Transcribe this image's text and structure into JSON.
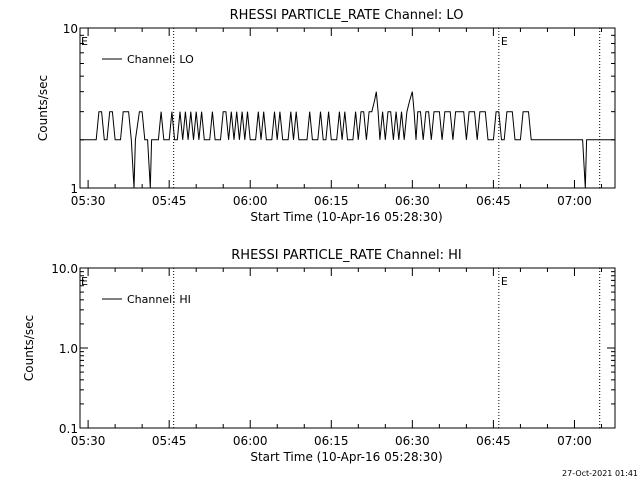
{
  "footer": {
    "timestamp": "27-Oct-2021 01:41"
  },
  "chart_data": [
    {
      "type": "line",
      "title": "RHESSI PARTICLE_RATE Channel: LO",
      "xlabel": "Start Time (10-Apr-16 05:28:30)",
      "ylabel": "Counts/sec",
      "yscale": "log",
      "ylim": [
        1,
        10
      ],
      "xlim": [
        "05:28:30",
        "07:07:30"
      ],
      "yticks": [
        {
          "v": 1,
          "label": "1"
        },
        {
          "v": 10,
          "label": "10"
        }
      ],
      "xticks": [
        "05:30",
        "05:45",
        "06:00",
        "06:15",
        "06:30",
        "06:45",
        "07:00"
      ],
      "legend": {
        "position": "top-left",
        "entries": [
          "Channel: LO"
        ]
      },
      "markers": [
        {
          "t": "05:45:50",
          "label": ""
        },
        {
          "t": "06:46:00",
          "label": "E"
        },
        {
          "t": "07:04:40",
          "label": ""
        }
      ],
      "edge_label": "E",
      "series": [
        {
          "name": "Channel: LO",
          "points": [
            [
              "05:28:30",
              1
            ],
            [
              "05:28:30",
              2
            ],
            [
              "05:31:30",
              2
            ],
            [
              "05:32:00",
              3
            ],
            [
              "05:32:30",
              3
            ],
            [
              "05:33:00",
              2
            ],
            [
              "05:33:30",
              2
            ],
            [
              "05:34:00",
              3
            ],
            [
              "05:34:30",
              3
            ],
            [
              "05:35:00",
              2
            ],
            [
              "05:36:00",
              2
            ],
            [
              "05:36:30",
              3
            ],
            [
              "05:37:30",
              3
            ],
            [
              "05:38:00",
              2
            ],
            [
              "05:38:30",
              1
            ],
            [
              "05:38:45",
              2
            ],
            [
              "05:39:30",
              3
            ],
            [
              "05:40:00",
              3
            ],
            [
              "05:40:30",
              2
            ],
            [
              "05:41:00",
              2
            ],
            [
              "05:41:30",
              1
            ],
            [
              "05:41:45",
              2
            ],
            [
              "05:43:00",
              2
            ],
            [
              "05:43:30",
              3
            ],
            [
              "05:44:00",
              2
            ],
            [
              "05:45:00",
              2
            ],
            [
              "05:45:30",
              3
            ],
            [
              "05:46:00",
              2
            ],
            [
              "05:46:30",
              2
            ],
            [
              "05:47:00",
              3
            ],
            [
              "05:47:30",
              2
            ],
            [
              "05:48:00",
              3
            ],
            [
              "05:48:30",
              2
            ],
            [
              "05:49:00",
              3
            ],
            [
              "05:49:30",
              2
            ],
            [
              "05:50:00",
              3
            ],
            [
              "05:50:30",
              2
            ],
            [
              "05:51:00",
              3
            ],
            [
              "05:51:30",
              2
            ],
            [
              "05:52:30",
              2
            ],
            [
              "05:53:00",
              3
            ],
            [
              "05:53:30",
              2
            ],
            [
              "05:54:30",
              2
            ],
            [
              "05:55:00",
              3
            ],
            [
              "05:55:30",
              3
            ],
            [
              "05:56:00",
              2
            ],
            [
              "05:56:30",
              3
            ],
            [
              "05:57:00",
              2
            ],
            [
              "05:57:30",
              3
            ],
            [
              "05:58:00",
              2
            ],
            [
              "05:58:30",
              3
            ],
            [
              "05:59:00",
              2
            ],
            [
              "05:59:30",
              3
            ],
            [
              "06:00:00",
              2
            ],
            [
              "06:01:00",
              2
            ],
            [
              "06:01:30",
              3
            ],
            [
              "06:02:00",
              2
            ],
            [
              "06:02:30",
              3
            ],
            [
              "06:03:00",
              2
            ],
            [
              "06:04:00",
              2
            ],
            [
              "06:04:30",
              3
            ],
            [
              "06:05:00",
              2
            ],
            [
              "06:05:30",
              3
            ],
            [
              "06:06:00",
              2
            ],
            [
              "06:07:00",
              2
            ],
            [
              "06:07:30",
              3
            ],
            [
              "06:08:00",
              2
            ],
            [
              "06:08:30",
              3
            ],
            [
              "06:09:00",
              2
            ],
            [
              "06:10:30",
              2
            ],
            [
              "06:11:00",
              3
            ],
            [
              "06:11:30",
              2
            ],
            [
              "06:12:30",
              2
            ],
            [
              "06:13:00",
              3
            ],
            [
              "06:13:30",
              2
            ],
            [
              "06:14:00",
              2
            ],
            [
              "06:14:30",
              3
            ],
            [
              "06:15:00",
              2
            ],
            [
              "06:16:00",
              2
            ],
            [
              "06:16:30",
              3
            ],
            [
              "06:17:00",
              2
            ],
            [
              "06:17:30",
              3
            ],
            [
              "06:18:00",
              2
            ],
            [
              "06:19:00",
              2
            ],
            [
              "06:19:30",
              3
            ],
            [
              "06:20:00",
              2
            ],
            [
              "06:20:30",
              3
            ],
            [
              "06:21:00",
              3
            ],
            [
              "06:21:30",
              2
            ],
            [
              "06:22:00",
              3
            ],
            [
              "06:22:30",
              3
            ],
            [
              "06:23:00",
              3.5
            ],
            [
              "06:23:20",
              4
            ],
            [
              "06:23:40",
              3
            ],
            [
              "06:24:00",
              2
            ],
            [
              "06:24:30",
              3
            ],
            [
              "06:25:00",
              2
            ],
            [
              "06:25:30",
              3
            ],
            [
              "06:26:00",
              3
            ],
            [
              "06:26:30",
              2
            ],
            [
              "06:27:00",
              3
            ],
            [
              "06:27:30",
              2
            ],
            [
              "06:28:00",
              3
            ],
            [
              "06:28:30",
              2
            ],
            [
              "06:29:00",
              3
            ],
            [
              "06:29:30",
              3.5
            ],
            [
              "06:30:00",
              4
            ],
            [
              "06:30:20",
              3
            ],
            [
              "06:30:40",
              2
            ],
            [
              "06:31:00",
              3
            ],
            [
              "06:31:30",
              3
            ],
            [
              "06:32:00",
              2
            ],
            [
              "06:32:30",
              3
            ],
            [
              "06:33:00",
              3
            ],
            [
              "06:33:30",
              2
            ],
            [
              "06:34:00",
              3
            ],
            [
              "06:35:00",
              3
            ],
            [
              "06:35:30",
              2
            ],
            [
              "06:36:00",
              3
            ],
            [
              "06:37:00",
              3
            ],
            [
              "06:37:30",
              2
            ],
            [
              "06:38:00",
              3
            ],
            [
              "06:39:30",
              3
            ],
            [
              "06:40:00",
              2
            ],
            [
              "06:40:30",
              3
            ],
            [
              "06:41:30",
              3
            ],
            [
              "06:42:00",
              2
            ],
            [
              "06:42:30",
              3
            ],
            [
              "06:43:30",
              3
            ],
            [
              "06:44:00",
              2
            ],
            [
              "06:45:00",
              2
            ],
            [
              "06:45:30",
              3
            ],
            [
              "06:46:00",
              3
            ],
            [
              "06:46:30",
              2
            ],
            [
              "06:47:00",
              2
            ],
            [
              "06:47:30",
              3
            ],
            [
              "06:48:30",
              3
            ],
            [
              "06:49:00",
              2
            ],
            [
              "06:50:00",
              2
            ],
            [
              "06:50:30",
              3
            ],
            [
              "06:51:30",
              3
            ],
            [
              "06:52:00",
              2
            ],
            [
              "07:01:30",
              2
            ],
            [
              "07:02:00",
              1
            ],
            [
              "07:02:15",
              2
            ],
            [
              "07:07:30",
              2
            ]
          ]
        }
      ]
    },
    {
      "type": "line",
      "title": "RHESSI PARTICLE_RATE Channel: HI",
      "xlabel": "Start Time (10-Apr-16 05:28:30)",
      "ylabel": "Counts/sec",
      "yscale": "log",
      "ylim": [
        0.1,
        10
      ],
      "xlim": [
        "05:28:30",
        "07:07:30"
      ],
      "yticks": [
        {
          "v": 0.1,
          "label": "0.1"
        },
        {
          "v": 1,
          "label": "1.0"
        },
        {
          "v": 10,
          "label": "10.0"
        }
      ],
      "xticks": [
        "05:30",
        "05:45",
        "06:00",
        "06:15",
        "06:30",
        "06:45",
        "07:00"
      ],
      "legend": {
        "position": "top-left",
        "entries": [
          "Channel: HI"
        ]
      },
      "markers": [
        {
          "t": "05:45:50",
          "label": ""
        },
        {
          "t": "06:46:00",
          "label": "E"
        },
        {
          "t": "07:04:40",
          "label": ""
        }
      ],
      "edge_label": "E",
      "series": [
        {
          "name": "Channel: HI",
          "points": []
        }
      ]
    }
  ]
}
